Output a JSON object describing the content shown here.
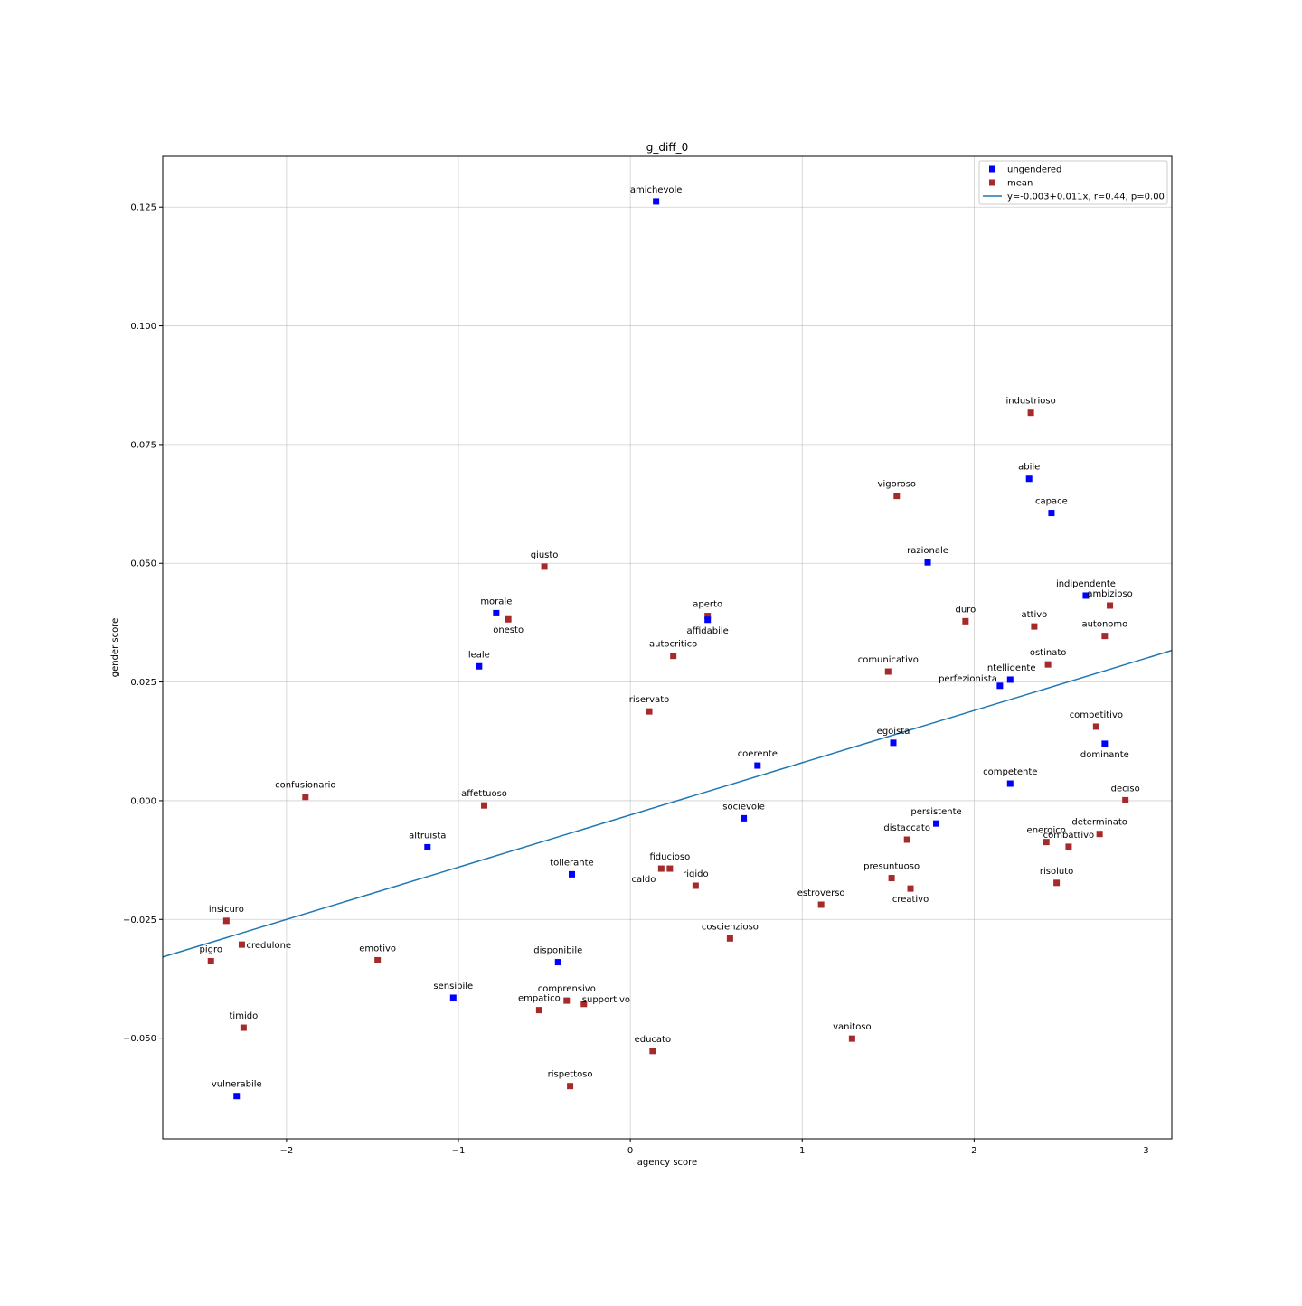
{
  "chart_data": {
    "type": "scatter",
    "title": "g_diff_0",
    "xlabel": "agency score",
    "ylabel": "gender score",
    "xlim": [
      -2.72,
      3.15
    ],
    "ylim": [
      -0.0712,
      0.1357
    ],
    "grid": true,
    "legend_placement": "top-right",
    "x_ticks": [
      -2,
      -1,
      0,
      1,
      2,
      3
    ],
    "x_tick_labels": [
      "−2",
      "−1",
      "0",
      "1",
      "2",
      "3"
    ],
    "y_ticks": [
      -0.05,
      -0.025,
      0.0,
      0.025,
      0.05,
      0.075,
      0.1,
      0.125
    ],
    "y_tick_labels": [
      "−0.050",
      "−0.025",
      "0.000",
      "0.025",
      "0.050",
      "0.075",
      "0.100",
      "0.125"
    ],
    "colors": {
      "ungendered": "#0000ff",
      "mean": "#a52a2a",
      "fit": "#1f77b4"
    },
    "legend": [
      {
        "key": "ungendered",
        "label": "ungendered",
        "marker": "square"
      },
      {
        "key": "mean",
        "label": "mean",
        "marker": "square"
      },
      {
        "key": "fit",
        "label": "y=-0.003+0.011x, r=0.44, p=0.00",
        "marker": "line"
      }
    ],
    "fit_line": {
      "intercept": -0.003,
      "slope": 0.011
    },
    "points": [
      {
        "label": "amichevole",
        "x": 0.15,
        "y": 0.1262,
        "group": "ungendered",
        "pos": "above"
      },
      {
        "label": "industrioso",
        "x": 2.33,
        "y": 0.0817,
        "group": "mean",
        "pos": "above"
      },
      {
        "label": "abile",
        "x": 2.32,
        "y": 0.0678,
        "group": "ungendered",
        "pos": "above"
      },
      {
        "label": "vigoroso",
        "x": 1.55,
        "y": 0.0642,
        "group": "mean",
        "pos": "above"
      },
      {
        "label": "capace",
        "x": 2.45,
        "y": 0.0606,
        "group": "ungendered",
        "pos": "above"
      },
      {
        "label": "razionale",
        "x": 1.73,
        "y": 0.0502,
        "group": "ungendered",
        "pos": "above"
      },
      {
        "label": "giusto",
        "x": -0.5,
        "y": 0.0493,
        "group": "mean",
        "pos": "above"
      },
      {
        "label": "indipendente",
        "x": 2.65,
        "y": 0.0432,
        "group": "ungendered",
        "pos": "above"
      },
      {
        "label": "ambizioso",
        "x": 2.79,
        "y": 0.0411,
        "group": "mean",
        "pos": "above"
      },
      {
        "label": "morale",
        "x": -0.78,
        "y": 0.0395,
        "group": "ungendered",
        "pos": "above"
      },
      {
        "label": "onesto",
        "x": -0.71,
        "y": 0.0382,
        "group": "mean",
        "pos": "below"
      },
      {
        "label": "aperto",
        "x": 0.45,
        "y": 0.0389,
        "group": "mean",
        "pos": "above"
      },
      {
        "label": "affidabile",
        "x": 0.45,
        "y": 0.0381,
        "group": "ungendered",
        "pos": "below"
      },
      {
        "label": "duro",
        "x": 1.95,
        "y": 0.0378,
        "group": "mean",
        "pos": "above"
      },
      {
        "label": "attivo",
        "x": 2.35,
        "y": 0.0367,
        "group": "mean",
        "pos": "above"
      },
      {
        "label": "autonomo",
        "x": 2.76,
        "y": 0.0347,
        "group": "mean",
        "pos": "above"
      },
      {
        "label": "autocritico",
        "x": 0.25,
        "y": 0.0305,
        "group": "mean",
        "pos": "above"
      },
      {
        "label": "ostinato",
        "x": 2.43,
        "y": 0.0287,
        "group": "mean",
        "pos": "above"
      },
      {
        "label": "leale",
        "x": -0.88,
        "y": 0.0283,
        "group": "ungendered",
        "pos": "above"
      },
      {
        "label": "comunicativo",
        "x": 1.5,
        "y": 0.0272,
        "group": "mean",
        "pos": "above"
      },
      {
        "label": "intelligente",
        "x": 2.21,
        "y": 0.0255,
        "group": "ungendered",
        "pos": "above"
      },
      {
        "label": "perfezionista",
        "x": 2.15,
        "y": 0.0242,
        "group": "ungendered",
        "pos": "left"
      },
      {
        "label": "riservato",
        "x": 0.11,
        "y": 0.0188,
        "group": "mean",
        "pos": "above"
      },
      {
        "label": "competitivo",
        "x": 2.71,
        "y": 0.0156,
        "group": "mean",
        "pos": "above"
      },
      {
        "label": "egoista",
        "x": 1.53,
        "y": 0.0122,
        "group": "ungendered",
        "pos": "above"
      },
      {
        "label": "dominante",
        "x": 2.76,
        "y": 0.012,
        "group": "ungendered",
        "pos": "below"
      },
      {
        "label": "coerente",
        "x": 0.74,
        "y": 0.0074,
        "group": "ungendered",
        "pos": "above"
      },
      {
        "label": "competente",
        "x": 2.21,
        "y": 0.0036,
        "group": "ungendered",
        "pos": "above"
      },
      {
        "label": "confusionario",
        "x": -1.89,
        "y": 0.0008,
        "group": "mean",
        "pos": "above"
      },
      {
        "label": "deciso",
        "x": 2.88,
        "y": 0.0001,
        "group": "mean",
        "pos": "above"
      },
      {
        "label": "affettuoso",
        "x": -0.85,
        "y": -0.001,
        "group": "mean",
        "pos": "above"
      },
      {
        "label": "socievole",
        "x": 0.66,
        "y": -0.0037,
        "group": "ungendered",
        "pos": "above"
      },
      {
        "label": "persistente",
        "x": 1.78,
        "y": -0.0048,
        "group": "ungendered",
        "pos": "above"
      },
      {
        "label": "determinato",
        "x": 2.73,
        "y": -0.007,
        "group": "mean",
        "pos": "above"
      },
      {
        "label": "distaccato",
        "x": 1.61,
        "y": -0.0082,
        "group": "mean",
        "pos": "above"
      },
      {
        "label": "energico",
        "x": 2.42,
        "y": -0.0087,
        "group": "mean",
        "pos": "above"
      },
      {
        "label": "combattivo",
        "x": 2.55,
        "y": -0.0097,
        "group": "mean",
        "pos": "above"
      },
      {
        "label": "altruista",
        "x": -1.18,
        "y": -0.0098,
        "group": "ungendered",
        "pos": "above"
      },
      {
        "label": "fiducioso",
        "x": 0.23,
        "y": -0.0143,
        "group": "mean",
        "pos": "above"
      },
      {
        "label": "caldo",
        "x": 0.18,
        "y": -0.0143,
        "group": "mean",
        "pos": "below-left"
      },
      {
        "label": "tollerante",
        "x": -0.34,
        "y": -0.0155,
        "group": "ungendered",
        "pos": "above"
      },
      {
        "label": "presuntuoso",
        "x": 1.52,
        "y": -0.0163,
        "group": "mean",
        "pos": "above"
      },
      {
        "label": "rigido",
        "x": 0.38,
        "y": -0.0179,
        "group": "mean",
        "pos": "above"
      },
      {
        "label": "risoluto",
        "x": 2.48,
        "y": -0.0173,
        "group": "mean",
        "pos": "above"
      },
      {
        "label": "creativo",
        "x": 1.63,
        "y": -0.0185,
        "group": "mean",
        "pos": "below"
      },
      {
        "label": "estroverso",
        "x": 1.11,
        "y": -0.0219,
        "group": "mean",
        "pos": "above"
      },
      {
        "label": "insicuro",
        "x": -2.35,
        "y": -0.0253,
        "group": "mean",
        "pos": "above"
      },
      {
        "label": "coscienzioso",
        "x": 0.58,
        "y": -0.029,
        "group": "mean",
        "pos": "above"
      },
      {
        "label": "credulone",
        "x": -2.26,
        "y": -0.0303,
        "group": "mean",
        "pos": "right"
      },
      {
        "label": "pigro",
        "x": -2.44,
        "y": -0.0338,
        "group": "mean",
        "pos": "above"
      },
      {
        "label": "emotivo",
        "x": -1.47,
        "y": -0.0336,
        "group": "mean",
        "pos": "above"
      },
      {
        "label": "disponibile",
        "x": -0.42,
        "y": -0.034,
        "group": "ungendered",
        "pos": "above"
      },
      {
        "label": "sensibile",
        "x": -1.03,
        "y": -0.0415,
        "group": "ungendered",
        "pos": "above"
      },
      {
        "label": "comprensivo",
        "x": -0.37,
        "y": -0.0421,
        "group": "mean",
        "pos": "above"
      },
      {
        "label": "empatico",
        "x": -0.53,
        "y": -0.0441,
        "group": "mean",
        "pos": "above"
      },
      {
        "label": "supportivo",
        "x": -0.27,
        "y": -0.0428,
        "group": "mean",
        "pos": "above-right"
      },
      {
        "label": "timido",
        "x": -2.25,
        "y": -0.0478,
        "group": "mean",
        "pos": "above"
      },
      {
        "label": "vanitoso",
        "x": 1.29,
        "y": -0.0501,
        "group": "mean",
        "pos": "above"
      },
      {
        "label": "educato",
        "x": 0.13,
        "y": -0.0527,
        "group": "mean",
        "pos": "above"
      },
      {
        "label": "rispettoso",
        "x": -0.35,
        "y": -0.0601,
        "group": "mean",
        "pos": "above"
      },
      {
        "label": "vulnerabile",
        "x": -2.29,
        "y": -0.0622,
        "group": "ungendered",
        "pos": "above"
      }
    ]
  }
}
